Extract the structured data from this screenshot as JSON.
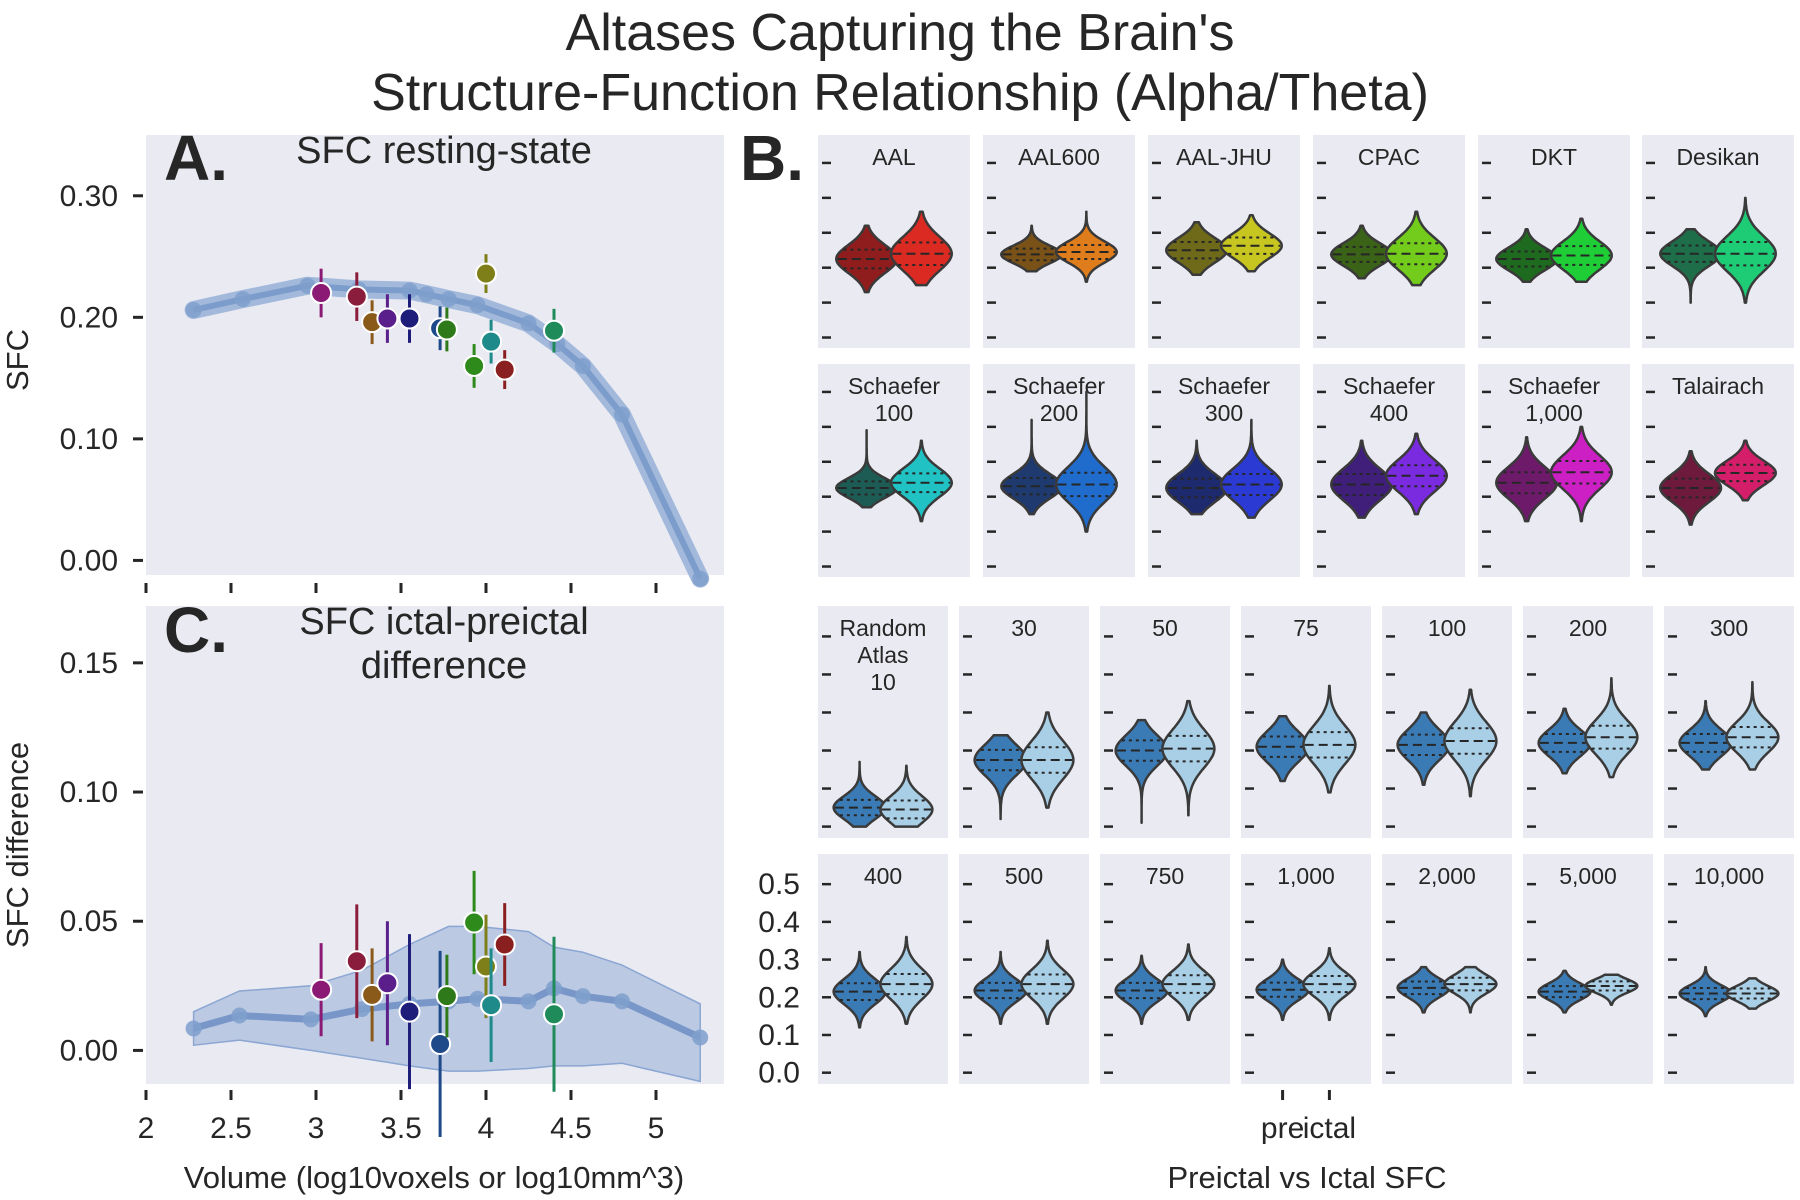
{
  "figure": {
    "title_lines": [
      "Altases Capturing the Brain's",
      "Structure-Function Relationship (Alpha/Theta)"
    ]
  },
  "panel_a": {
    "letter": "A.",
    "title_lines": [
      "SFC resting-state"
    ],
    "ylabel": "SFC",
    "yticks": [
      "0.00",
      "0.10",
      "0.20",
      "0.30"
    ]
  },
  "panel_b": {
    "letter": "B.",
    "xlabel": "Preictal vs Ictal SFC",
    "xticks": [
      "pre",
      "ictal"
    ],
    "yticks": [
      "0.0",
      "0.1",
      "0.2",
      "0.3",
      "0.4",
      "0.5"
    ]
  },
  "panel_c": {
    "letter": "C.",
    "title_lines": [
      "SFC ictal-preictal",
      "difference"
    ],
    "ylabel": "SFC difference",
    "xlabel": "Volume (log10voxels or log10mm^3)",
    "yticks": [
      "0.00",
      "0.05",
      "0.10",
      "0.15"
    ],
    "xticks": [
      "2",
      "2.5",
      "3",
      "3.5",
      "4",
      "4.5",
      "5"
    ]
  },
  "chart_data": [
    {
      "panel": "A",
      "type": "scatter",
      "title": "SFC resting-state",
      "xlabel": "",
      "ylabel": "SFC",
      "xlim": [
        2,
        5.4
      ],
      "ylim": [
        -0.012,
        0.35
      ],
      "grid": false,
      "random_atlas_trend": {
        "x": [
          2.28,
          2.57,
          2.95,
          3.25,
          3.55,
          3.65,
          3.78,
          3.95,
          4.25,
          4.42,
          4.57,
          4.8,
          5.26
        ],
        "y": [
          0.206,
          0.215,
          0.226,
          0.223,
          0.222,
          0.219,
          0.215,
          0.21,
          0.195,
          0.178,
          0.16,
          0.12,
          -0.015
        ]
      },
      "atlas_points": [
        {
          "x": 3.03,
          "y": 0.22,
          "err": 0.02,
          "color": "#8a1a73"
        },
        {
          "x": 3.24,
          "y": 0.217,
          "err": 0.02,
          "color": "#8a1d3c"
        },
        {
          "x": 3.33,
          "y": 0.196,
          "err": 0.018,
          "color": "#8a5a1a"
        },
        {
          "x": 3.42,
          "y": 0.199,
          "err": 0.02,
          "color": "#5a1f8a"
        },
        {
          "x": 3.55,
          "y": 0.199,
          "err": 0.02,
          "color": "#1e1e7a"
        },
        {
          "x": 3.73,
          "y": 0.191,
          "err": 0.018,
          "color": "#1f4a8a"
        },
        {
          "x": 3.77,
          "y": 0.19,
          "err": 0.018,
          "color": "#2e7a1a"
        },
        {
          "x": 3.93,
          "y": 0.16,
          "err": 0.018,
          "color": "#2e8a1a"
        },
        {
          "x": 4.0,
          "y": 0.236,
          "err": 0.016,
          "color": "#7f7f1a"
        },
        {
          "x": 4.03,
          "y": 0.18,
          "err": 0.018,
          "color": "#1f8a8a"
        },
        {
          "x": 4.11,
          "y": 0.157,
          "err": 0.016,
          "color": "#8a1f1f"
        },
        {
          "x": 4.4,
          "y": 0.189,
          "err": 0.018,
          "color": "#1f8a5a"
        }
      ]
    },
    {
      "panel": "C",
      "type": "scatter",
      "title": "SFC ictal-preictal difference",
      "xlabel": "Volume (log10voxels or log10mm^3)",
      "ylabel": "SFC difference",
      "xlim": [
        2,
        5.4
      ],
      "ylim": [
        -0.013,
        0.172
      ],
      "grid": false,
      "random_atlas_trend": {
        "x": [
          2.28,
          2.55,
          2.97,
          3.27,
          3.55,
          3.78,
          3.95,
          4.25,
          4.4,
          4.57,
          4.8,
          5.26
        ],
        "y": [
          0.0085,
          0.0135,
          0.012,
          0.016,
          0.018,
          0.019,
          0.02,
          0.019,
          0.024,
          0.021,
          0.019,
          0.005
        ],
        "band_lower": [
          0.002,
          0.004,
          0.0,
          -0.003,
          -0.006,
          -0.008,
          -0.008,
          -0.007,
          -0.006,
          -0.006,
          -0.005,
          -0.012
        ],
        "band_upper": [
          0.015,
          0.023,
          0.025,
          0.031,
          0.041,
          0.048,
          0.048,
          0.046,
          0.04,
          0.038,
          0.033,
          0.018
        ]
      },
      "atlas_points": [
        {
          "x": 3.03,
          "y": 0.0235,
          "err": 0.018,
          "color": "#8a1a73"
        },
        {
          "x": 3.24,
          "y": 0.0345,
          "err": 0.022,
          "color": "#8a1d3c"
        },
        {
          "x": 3.33,
          "y": 0.0215,
          "err": 0.018,
          "color": "#8a5a1a"
        },
        {
          "x": 3.42,
          "y": 0.026,
          "err": 0.024,
          "color": "#5a1f8a"
        },
        {
          "x": 3.55,
          "y": 0.015,
          "err": 0.03,
          "color": "#1e1e7a"
        },
        {
          "x": 3.73,
          "y": 0.0025,
          "err": 0.036,
          "color": "#1f4a8a"
        },
        {
          "x": 3.77,
          "y": 0.021,
          "err": 0.016,
          "color": "#2e7a1a"
        },
        {
          "x": 3.93,
          "y": 0.0495,
          "err": 0.02,
          "color": "#2e8a1a"
        },
        {
          "x": 4.0,
          "y": 0.0325,
          "err": 0.02,
          "color": "#7f7f1a"
        },
        {
          "x": 4.03,
          "y": 0.0175,
          "err": 0.022,
          "color": "#1f8a8a"
        },
        {
          "x": 4.11,
          "y": 0.041,
          "err": 0.016,
          "color": "#8a1f1f"
        },
        {
          "x": 4.4,
          "y": 0.014,
          "err": 0.03,
          "color": "#1f8a5a"
        }
      ]
    },
    {
      "panel": "B",
      "type": "violin",
      "xlabel": "Preictal vs Ictal SFC",
      "categories": [
        "pre",
        "ictal"
      ],
      "ylim": [
        -0.03,
        0.58
      ],
      "atlases": [
        {
          "label": [
            "AAL"
          ],
          "colors": [
            "#8f1d1d",
            "#db2a22"
          ],
          "pre": {
            "c": 0.225,
            "s": 0.04,
            "r": [
              0.13,
              0.32
            ]
          },
          "ictal": {
            "c": 0.24,
            "s": 0.048,
            "r": [
              0.15,
              0.36
            ]
          }
        },
        {
          "label": [
            "AAL600"
          ],
          "colors": [
            "#7a5217",
            "#df7d1d"
          ],
          "pre": {
            "c": 0.238,
            "s": 0.025,
            "r": [
              0.19,
              0.32
            ]
          },
          "ictal": {
            "c": 0.245,
            "s": 0.03,
            "r": [
              0.16,
              0.36
            ]
          }
        },
        {
          "label": [
            "AAL-JHU"
          ],
          "colors": [
            "#6e6a1a",
            "#c7c51f"
          ],
          "pre": {
            "c": 0.25,
            "s": 0.035,
            "r": [
              0.18,
              0.33
            ]
          },
          "ictal": {
            "c": 0.263,
            "s": 0.035,
            "r": [
              0.19,
              0.35
            ]
          }
        },
        {
          "label": [
            "CPAC"
          ],
          "colors": [
            "#3a6317",
            "#73cc1b"
          ],
          "pre": {
            "c": 0.238,
            "s": 0.032,
            "r": [
              0.17,
              0.32
            ]
          },
          "ictal": {
            "c": 0.24,
            "s": 0.045,
            "r": [
              0.15,
              0.36
            ]
          }
        },
        {
          "label": [
            "DKT"
          ],
          "colors": [
            "#1e6a1e",
            "#1fcd36"
          ],
          "pre": {
            "c": 0.225,
            "s": 0.032,
            "r": [
              0.16,
              0.31
            ]
          },
          "ictal": {
            "c": 0.235,
            "s": 0.04,
            "r": [
              0.16,
              0.34
            ]
          }
        },
        {
          "label": [
            "Desikan"
          ],
          "colors": [
            "#1e6e4a",
            "#1fcc76"
          ],
          "pre": {
            "c": 0.24,
            "s": 0.035,
            "r": [
              0.1,
              0.31
            ]
          },
          "ictal": {
            "c": 0.24,
            "s": 0.05,
            "r": [
              0.1,
              0.4
            ]
          }
        },
        {
          "label": [
            "Schaefer",
            "100"
          ],
          "colors": [
            "#1d5c54",
            "#20c2c4"
          ],
          "pre": {
            "c": 0.225,
            "s": 0.028,
            "r": [
              0.17,
              0.39
            ]
          },
          "ictal": {
            "c": 0.24,
            "s": 0.04,
            "r": [
              0.13,
              0.36
            ]
          }
        },
        {
          "label": [
            "Schaefer",
            "200"
          ],
          "colors": [
            "#1e3a6e",
            "#1f6ccc"
          ],
          "pre": {
            "c": 0.23,
            "s": 0.035,
            "r": [
              0.15,
              0.42
            ]
          },
          "ictal": {
            "c": 0.235,
            "s": 0.05,
            "r": [
              0.1,
              0.5
            ]
          }
        },
        {
          "label": [
            "Schaefer",
            "300"
          ],
          "colors": [
            "#1e2a6e",
            "#2a3ad3"
          ],
          "pre": {
            "c": 0.225,
            "s": 0.04,
            "r": [
              0.15,
              0.36
            ]
          },
          "ictal": {
            "c": 0.235,
            "s": 0.045,
            "r": [
              0.14,
              0.42
            ]
          }
        },
        {
          "label": [
            "Schaefer",
            "400"
          ],
          "colors": [
            "#3f1f7a",
            "#7a2be0"
          ],
          "pre": {
            "c": 0.235,
            "s": 0.045,
            "r": [
              0.14,
              0.36
            ]
          },
          "ictal": {
            "c": 0.26,
            "s": 0.045,
            "r": [
              0.15,
              0.38
            ]
          }
        },
        {
          "label": [
            "Schaefer",
            "1,000"
          ],
          "colors": [
            "#6e1a6b",
            "#cc1fc4"
          ],
          "pre": {
            "c": 0.24,
            "s": 0.045,
            "r": [
              0.13,
              0.37
            ]
          },
          "ictal": {
            "c": 0.27,
            "s": 0.048,
            "r": [
              0.13,
              0.4
            ]
          }
        },
        {
          "label": [
            "Talairach"
          ],
          "colors": [
            "#6e1a3c",
            "#d41e6a"
          ],
          "pre": {
            "c": 0.225,
            "s": 0.04,
            "r": [
              0.12,
              0.33
            ]
          },
          "ictal": {
            "c": 0.268,
            "s": 0.035,
            "r": [
              0.19,
              0.36
            ]
          }
        },
        {
          "label": [
            "Random",
            "Atlas",
            "10"
          ],
          "colors": [
            "#3a7bb5",
            "#a9cfe6"
          ],
          "pre": {
            "c": 0.05,
            "s": 0.03,
            "r": [
              0.0,
              0.17
            ]
          },
          "ictal": {
            "c": 0.045,
            "s": 0.035,
            "r": [
              0.0,
              0.16
            ]
          }
        },
        {
          "label": [
            "30"
          ],
          "colors": [
            "#3a7bb5",
            "#a9cfe6"
          ],
          "pre": {
            "c": 0.175,
            "s": 0.04,
            "r": [
              0.02,
              0.24
            ]
          },
          "ictal": {
            "c": 0.175,
            "s": 0.05,
            "r": [
              0.05,
              0.3
            ]
          }
        },
        {
          "label": [
            "50"
          ],
          "colors": [
            "#3a7bb5",
            "#a9cfe6"
          ],
          "pre": {
            "c": 0.2,
            "s": 0.04,
            "r": [
              0.01,
              0.28
            ]
          },
          "ictal": {
            "c": 0.205,
            "s": 0.05,
            "r": [
              0.03,
              0.33
            ]
          }
        },
        {
          "label": [
            "75"
          ],
          "colors": [
            "#3a7bb5",
            "#a9cfe6"
          ],
          "pre": {
            "c": 0.21,
            "s": 0.04,
            "r": [
              0.12,
              0.29
            ]
          },
          "ictal": {
            "c": 0.215,
            "s": 0.05,
            "r": [
              0.09,
              0.37
            ]
          }
        },
        {
          "label": [
            "100"
          ],
          "colors": [
            "#3a7bb5",
            "#a9cfe6"
          ],
          "pre": {
            "c": 0.215,
            "s": 0.04,
            "r": [
              0.11,
              0.3
            ]
          },
          "ictal": {
            "c": 0.225,
            "s": 0.05,
            "r": [
              0.08,
              0.36
            ]
          }
        },
        {
          "label": [
            "200"
          ],
          "colors": [
            "#3a7bb5",
            "#a9cfe6"
          ],
          "pre": {
            "c": 0.22,
            "s": 0.035,
            "r": [
              0.14,
              0.31
            ]
          },
          "ictal": {
            "c": 0.235,
            "s": 0.045,
            "r": [
              0.13,
              0.39
            ]
          }
        },
        {
          "label": [
            "300"
          ],
          "colors": [
            "#3a7bb5",
            "#a9cfe6"
          ],
          "pre": {
            "c": 0.22,
            "s": 0.035,
            "r": [
              0.15,
              0.33
            ]
          },
          "ictal": {
            "c": 0.235,
            "s": 0.04,
            "r": [
              0.15,
              0.38
            ]
          }
        },
        {
          "label": [
            "400"
          ],
          "colors": [
            "#3a7bb5",
            "#a9cfe6"
          ],
          "pre": {
            "c": 0.215,
            "s": 0.033,
            "r": [
              0.12,
              0.32
            ]
          },
          "ictal": {
            "c": 0.235,
            "s": 0.04,
            "r": [
              0.13,
              0.36
            ]
          }
        },
        {
          "label": [
            "500"
          ],
          "colors": [
            "#3a7bb5",
            "#a9cfe6"
          ],
          "pre": {
            "c": 0.218,
            "s": 0.03,
            "r": [
              0.13,
              0.32
            ]
          },
          "ictal": {
            "c": 0.235,
            "s": 0.038,
            "r": [
              0.13,
              0.35
            ]
          }
        },
        {
          "label": [
            "750"
          ],
          "colors": [
            "#3a7bb5",
            "#a9cfe6"
          ],
          "pre": {
            "c": 0.218,
            "s": 0.03,
            "r": [
              0.13,
              0.31
            ]
          },
          "ictal": {
            "c": 0.235,
            "s": 0.035,
            "r": [
              0.14,
              0.34
            ]
          }
        },
        {
          "label": [
            "1,000"
          ],
          "colors": [
            "#3a7bb5",
            "#a9cfe6"
          ],
          "pre": {
            "c": 0.22,
            "s": 0.028,
            "r": [
              0.14,
              0.3
            ]
          },
          "ictal": {
            "c": 0.235,
            "s": 0.032,
            "r": [
              0.14,
              0.33
            ]
          }
        },
        {
          "label": [
            "2,000"
          ],
          "colors": [
            "#3a7bb5",
            "#a9cfe6"
          ],
          "pre": {
            "c": 0.225,
            "s": 0.025,
            "r": [
              0.16,
              0.28
            ]
          },
          "ictal": {
            "c": 0.235,
            "s": 0.025,
            "r": [
              0.16,
              0.28
            ]
          }
        },
        {
          "label": [
            "5,000"
          ],
          "colors": [
            "#3a7bb5",
            "#a9cfe6"
          ],
          "pre": {
            "c": 0.215,
            "s": 0.022,
            "r": [
              0.16,
              0.27
            ]
          },
          "ictal": {
            "c": 0.23,
            "s": 0.018,
            "r": [
              0.18,
              0.26
            ]
          }
        },
        {
          "label": [
            "10,000"
          ],
          "colors": [
            "#3a7bb5",
            "#a9cfe6"
          ],
          "pre": {
            "c": 0.21,
            "s": 0.022,
            "r": [
              0.15,
              0.28
            ]
          },
          "ictal": {
            "c": 0.21,
            "s": 0.02,
            "r": [
              0.17,
              0.25
            ]
          }
        }
      ]
    }
  ]
}
